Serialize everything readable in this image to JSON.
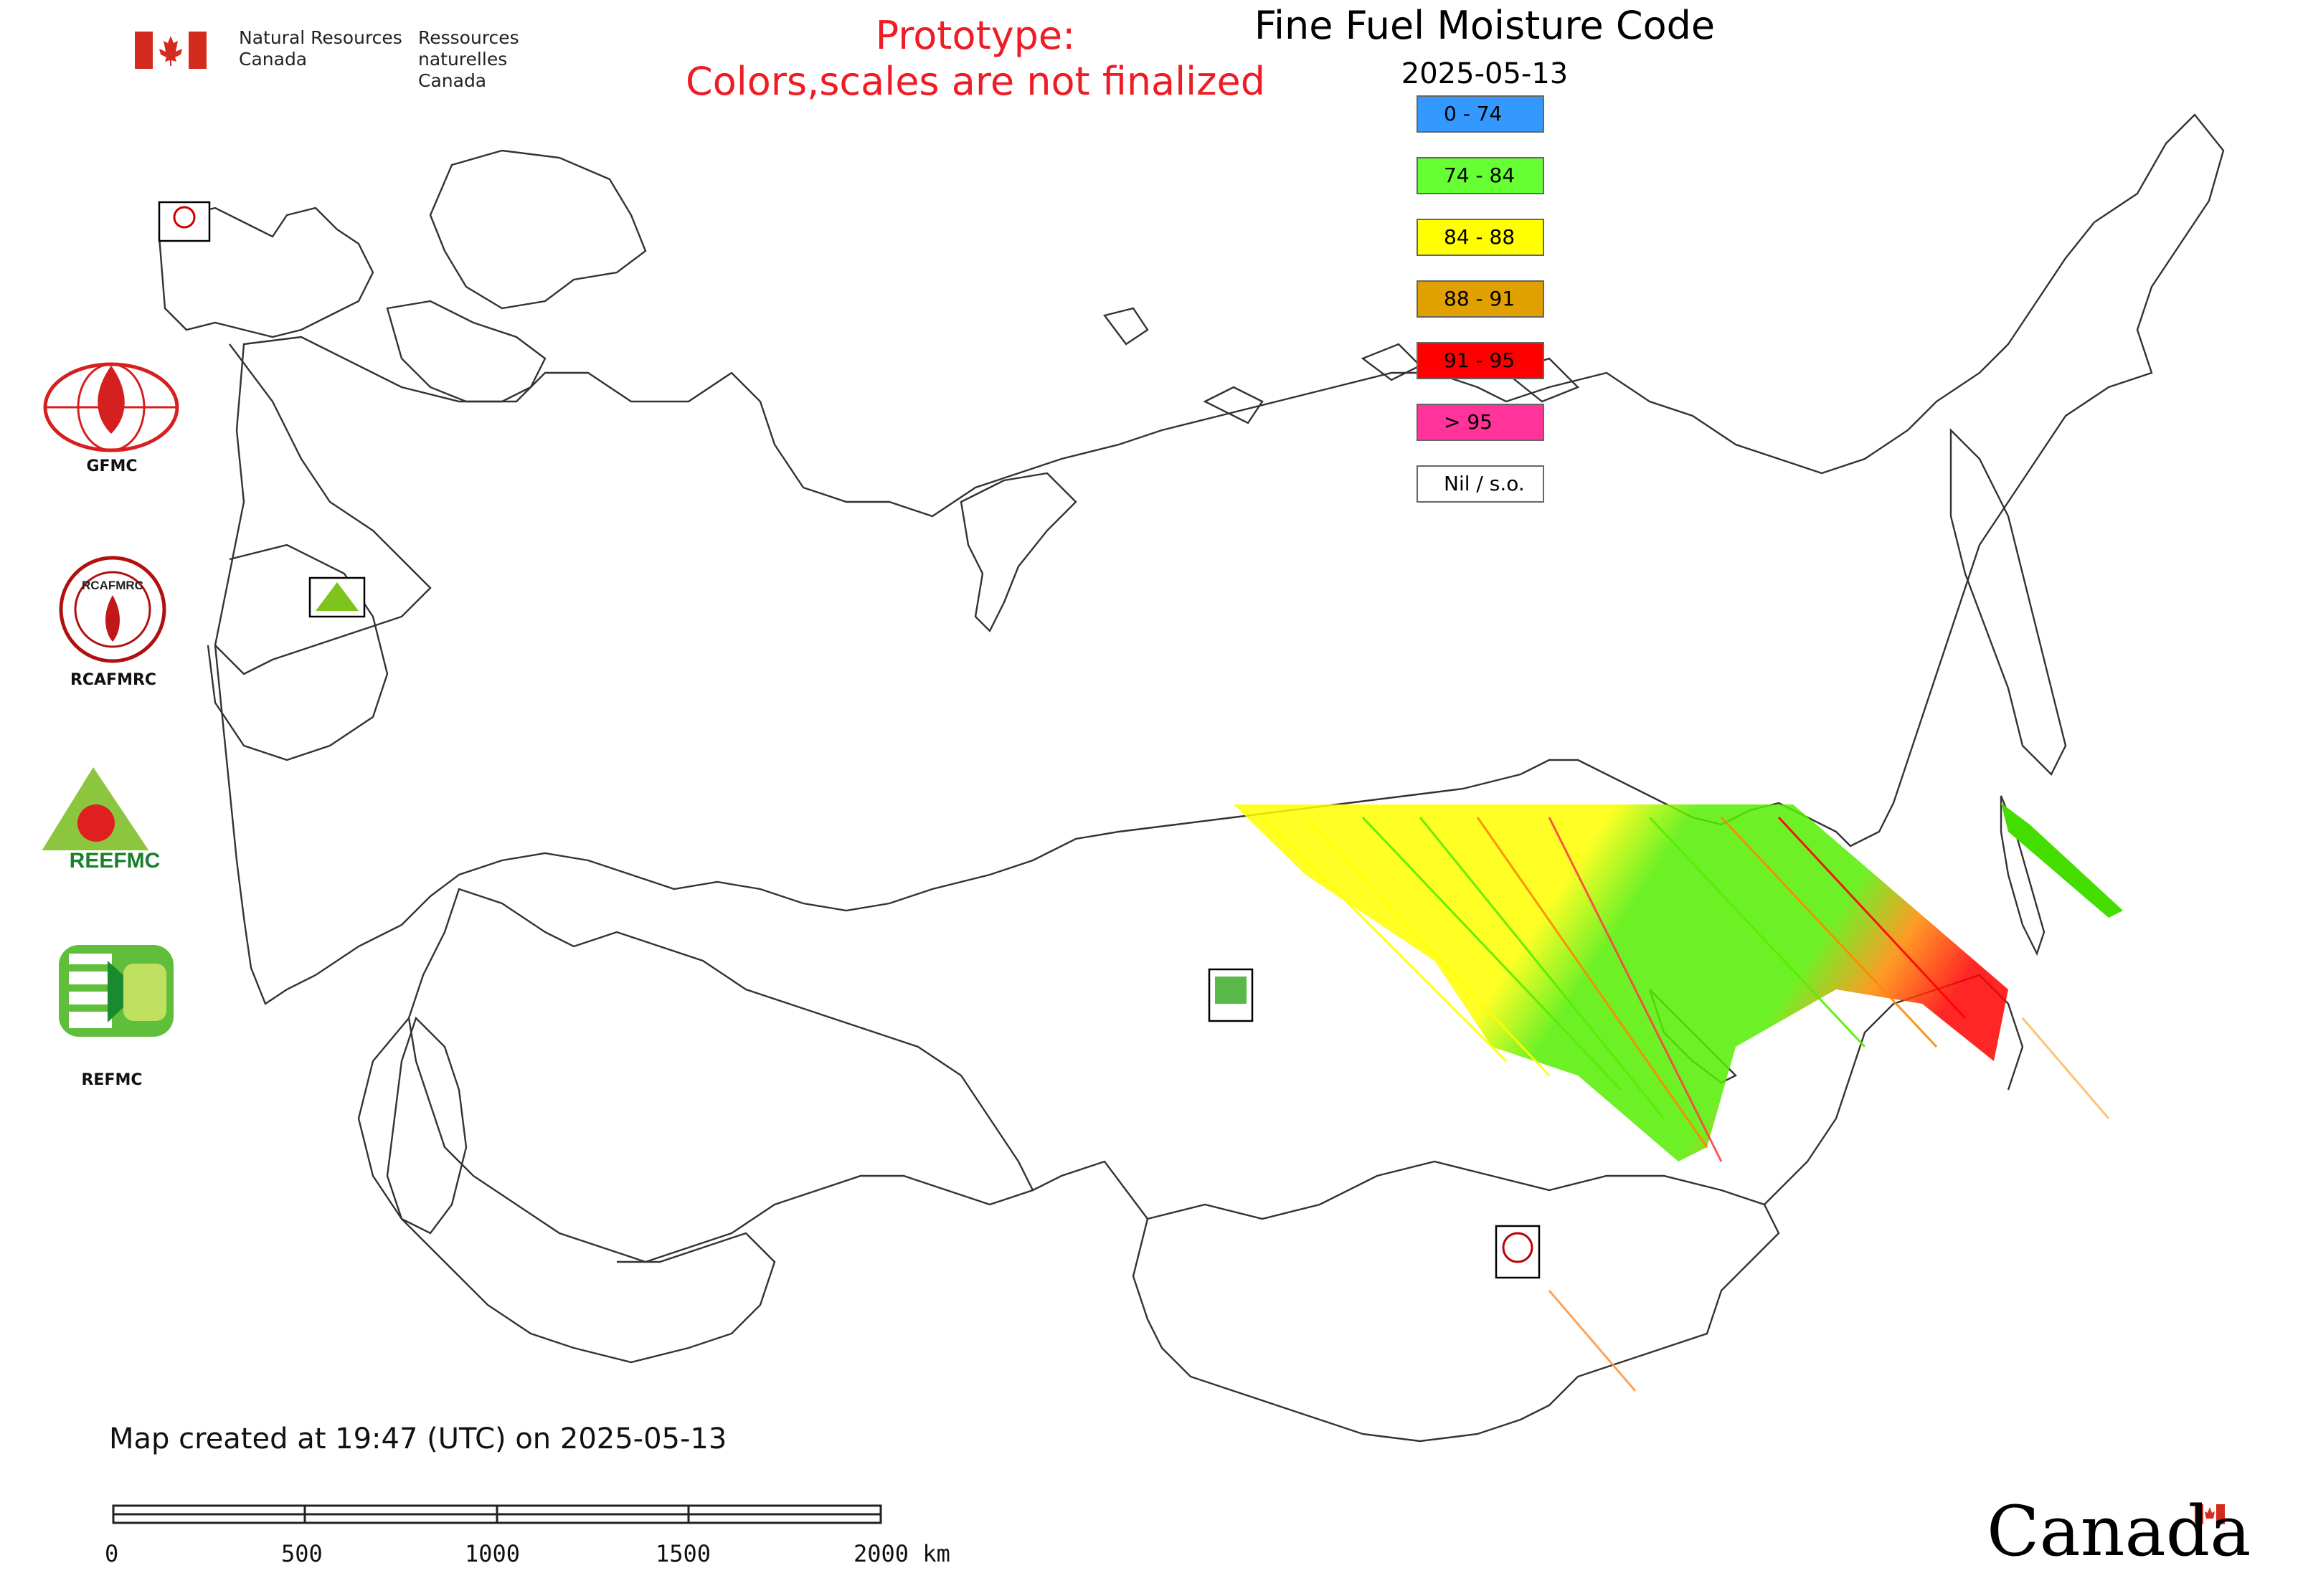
{
  "header": {
    "title": "Fine Fuel Moisture Code",
    "date": "2025-05-13",
    "prototype_line1": "Prototype:",
    "prototype_line2": "Colors,scales are not finalized"
  },
  "agency": {
    "name_en_line1": "Natural Resources",
    "name_en_line2": "Canada",
    "name_fr_line1": "Ressources naturelles",
    "name_fr_line2": "Canada",
    "wordmark": "Canada"
  },
  "legend": [
    {
      "label": "0 - 74",
      "color": "#3399ff"
    },
    {
      "label": "74 - 84",
      "color": "#66ff33"
    },
    {
      "label": "84 - 88",
      "color": "#ffff00"
    },
    {
      "label": "88 - 91",
      "color": "#e0a000"
    },
    {
      "label": "91 - 95",
      "color": "#ff0000"
    },
    {
      "label": "> 95",
      "color": "#ff3399"
    },
    {
      "label": "Nil / s.o.",
      "color": "#ffffff"
    }
  ],
  "logos": {
    "gfmc": "GFMC",
    "rcafmrc": "RCAFMRC",
    "refmc": "REFMC",
    "reefmc_text": "REEFMC"
  },
  "footer": {
    "created": "Map created at 19:47 (UTC) on 2025-05-13",
    "scale_labels": [
      "0",
      "500",
      "1000",
      "1500",
      "2000 km"
    ]
  },
  "colors": {
    "title_red": "#ee1c25",
    "border": "#333333",
    "canada_red": "#d52b1e"
  }
}
